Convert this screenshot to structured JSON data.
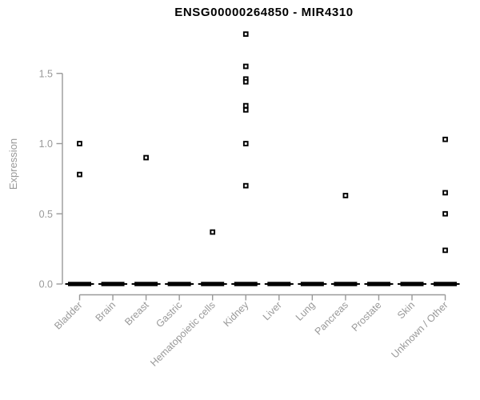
{
  "title": "ENSG00000264850 - MIR4310",
  "chart_data": {
    "type": "boxplot",
    "title": "ENSG00000264850 - MIR4310",
    "xlabel": "",
    "ylabel": "Expression",
    "ytick_labels": [
      "0.0",
      "0.5",
      "1.0",
      "1.5"
    ],
    "ytick_values": [
      0.0,
      0.5,
      1.0,
      1.5
    ],
    "ylim": [
      0.0,
      1.8
    ],
    "grid": false,
    "legend": false,
    "categories": [
      "Bladder",
      "Brain",
      "Breast",
      "Gastric",
      "Hematopoietic cells",
      "Kidney",
      "Liver",
      "Lung",
      "Pancreas",
      "Prostate",
      "Skin",
      "Unknown / Other"
    ],
    "boxes_note": "all 12 boxes are collapsed flat at 0 (min/q1/median/q3 = 0), drawn as thick black dashes",
    "box_median": [
      0,
      0,
      0,
      0,
      0,
      0,
      0,
      0,
      0,
      0,
      0,
      0
    ],
    "outliers": [
      {
        "category": "Bladder",
        "values": [
          1.0,
          0.78
        ]
      },
      {
        "category": "Brain",
        "values": []
      },
      {
        "category": "Breast",
        "values": [
          0.9
        ]
      },
      {
        "category": "Gastric",
        "values": []
      },
      {
        "category": "Hematopoietic cells",
        "values": [
          0.37
        ]
      },
      {
        "category": "Kidney",
        "values": [
          1.78,
          1.55,
          1.46,
          1.44,
          1.27,
          1.24,
          1.0,
          0.7
        ]
      },
      {
        "category": "Liver",
        "values": []
      },
      {
        "category": "Lung",
        "values": []
      },
      {
        "category": "Pancreas",
        "values": [
          0.63
        ]
      },
      {
        "category": "Prostate",
        "values": []
      },
      {
        "category": "Skin",
        "values": []
      },
      {
        "category": "Unknown / Other",
        "values": [
          1.03,
          0.65,
          0.5,
          0.24
        ]
      }
    ],
    "colors": {
      "title": "#000000",
      "axis": "#999999",
      "text": "#999999",
      "box": "#000000",
      "marker_stroke": "#000000",
      "marker_fill": "#ffffff",
      "background": "#ffffff"
    }
  }
}
